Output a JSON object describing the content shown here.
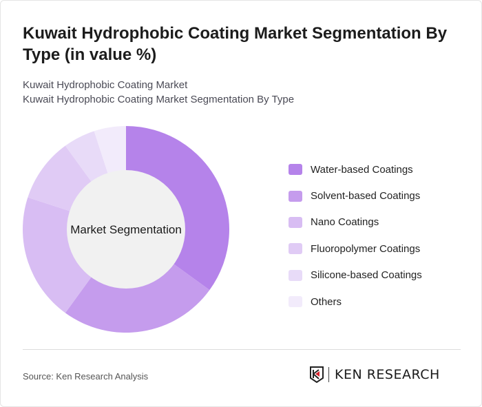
{
  "header": {
    "title": "Kuwait Hydrophobic Coating Market Segmentation By Type (in value %)",
    "subtitle1": "Kuwait Hydrophobic Coating Market",
    "subtitle2": "Kuwait Hydrophobic Coating Market Segmentation By Type"
  },
  "chart_data": {
    "type": "pie",
    "variant": "donut",
    "center_label": "Market Segmentation",
    "categories": [
      "Water-based Coatings",
      "Solvent-based Coatings",
      "Nano Coatings",
      "Fluoropolymer Coatings",
      "Silicone-based Coatings",
      "Others"
    ],
    "values": [
      35,
      25,
      20,
      10,
      5,
      5
    ],
    "colors": [
      "#b583ea",
      "#c59ced",
      "#d8bdf3",
      "#e0cbf5",
      "#e8dbf8",
      "#f2ebfb"
    ],
    "legend_position": "right"
  },
  "footer": {
    "source": "Source: Ken Research Analysis",
    "logo_text": "KEN RESEARCH"
  }
}
